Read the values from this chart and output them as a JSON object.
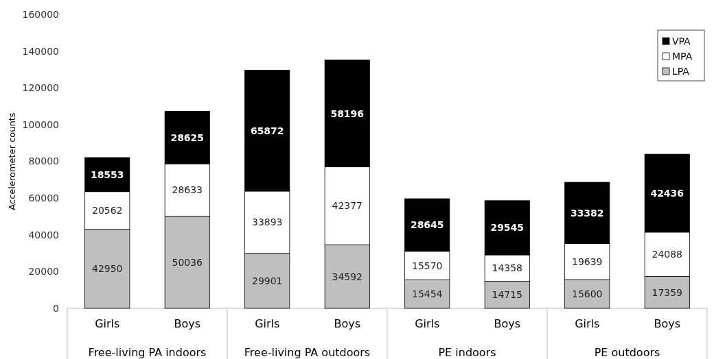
{
  "chart_data": {
    "type": "bar",
    "stacked": true,
    "ylabel": "Accelerometer counts",
    "categories": [
      "Girls",
      "Boys",
      "Girls",
      "Boys",
      "Girls",
      "Boys",
      "Girls",
      "Boys"
    ],
    "series": [
      {
        "name": "LPA",
        "color": "#bfbfbf",
        "values": [
          42950,
          50036,
          29901,
          34592,
          15454,
          14715,
          15600,
          17359
        ]
      },
      {
        "name": "MPA",
        "color": "#ffffff",
        "values": [
          20562,
          28633,
          33893,
          42377,
          15570,
          14358,
          19639,
          24088
        ]
      },
      {
        "name": "VPA",
        "color": "#000000",
        "values": [
          18553,
          28625,
          65872,
          58196,
          28645,
          29545,
          33382,
          42436
        ]
      }
    ],
    "ylim": [
      0,
      160000
    ],
    "yticks": [
      0,
      20000,
      40000,
      60000,
      80000,
      100000,
      120000,
      140000,
      160000
    ],
    "grid": false,
    "legend": "top right",
    "data_labels": true,
    "annotations": [
      "Free-living PA indoors",
      "Free-living PA outdoors",
      "PE indoors",
      "PE outdoors"
    ]
  }
}
